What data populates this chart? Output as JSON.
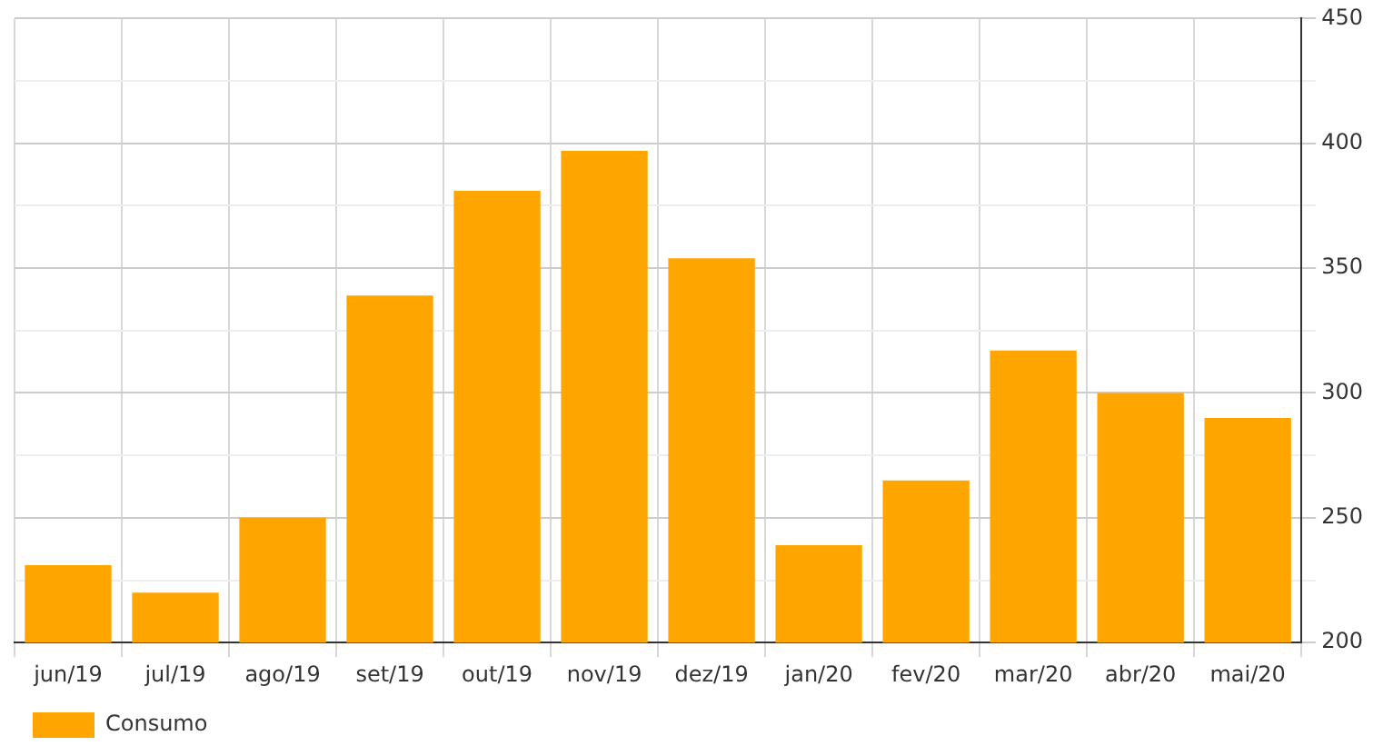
{
  "chart_data": {
    "type": "bar",
    "categories": [
      "jun/19",
      "jul/19",
      "ago/19",
      "set/19",
      "out/19",
      "nov/19",
      "dez/19",
      "jan/20",
      "fev/20",
      "mar/20",
      "abr/20",
      "mai/20"
    ],
    "series": [
      {
        "name": "Consumo",
        "color": "#ffa500",
        "values": [
          231,
          220,
          250,
          339,
          381,
          397,
          354,
          239,
          265,
          317,
          300,
          290
        ]
      }
    ],
    "ylim": [
      200,
      450
    ],
    "yticks": [
      200,
      {
        "value": 225,
        "label": null
      },
      250,
      {
        "value": 275,
        "label": null
      },
      300,
      {
        "value": 325,
        "label": null
      },
      350,
      {
        "value": 375,
        "label": null
      },
      400,
      {
        "value": 425,
        "label": null
      },
      450
    ],
    "grid": true,
    "legend": "bottom left"
  }
}
